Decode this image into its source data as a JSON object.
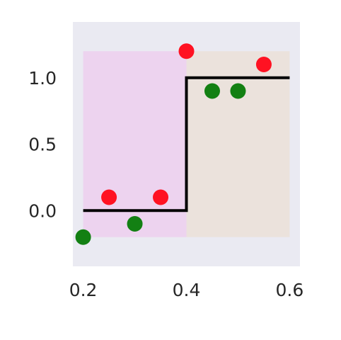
{
  "chart_data": {
    "type": "scatter",
    "title": "",
    "xlabel": "",
    "ylabel": "",
    "xlim": [
      0.18,
      0.62
    ],
    "ylim": [
      -0.42,
      1.42
    ],
    "x_ticks": [
      {
        "value": 0.2,
        "label": "0.2"
      },
      {
        "value": 0.4,
        "label": "0.4"
      },
      {
        "value": 0.6,
        "label": "0.6"
      }
    ],
    "y_ticks": [
      {
        "value": 0.0,
        "label": "0.0"
      },
      {
        "value": 0.5,
        "label": "0.5"
      },
      {
        "value": 1.0,
        "label": "1.0"
      }
    ],
    "grid": false,
    "background_color": "#EAEAF2",
    "regions": [
      {
        "x0": 0.2,
        "x1": 0.4,
        "y0": -0.2,
        "y1": 1.2,
        "color": "#EDD3EF"
      },
      {
        "x0": 0.4,
        "x1": 0.6,
        "y0": -0.2,
        "y1": 1.2,
        "color": "#EBE2DC"
      }
    ],
    "step_line": {
      "points": [
        [
          0.2,
          0.0
        ],
        [
          0.4,
          0.0
        ],
        [
          0.4,
          1.0
        ],
        [
          0.6,
          1.0
        ]
      ],
      "color": "#000000"
    },
    "series": [
      {
        "color": "#FF1222",
        "points": [
          [
            0.25,
            0.1
          ],
          [
            0.35,
            0.1
          ],
          [
            0.4,
            1.2
          ],
          [
            0.55,
            1.1
          ]
        ]
      },
      {
        "color": "#138013",
        "points": [
          [
            0.2,
            -0.2
          ],
          [
            0.3,
            -0.1
          ],
          [
            0.45,
            0.9
          ],
          [
            0.5,
            0.9
          ]
        ]
      }
    ]
  }
}
